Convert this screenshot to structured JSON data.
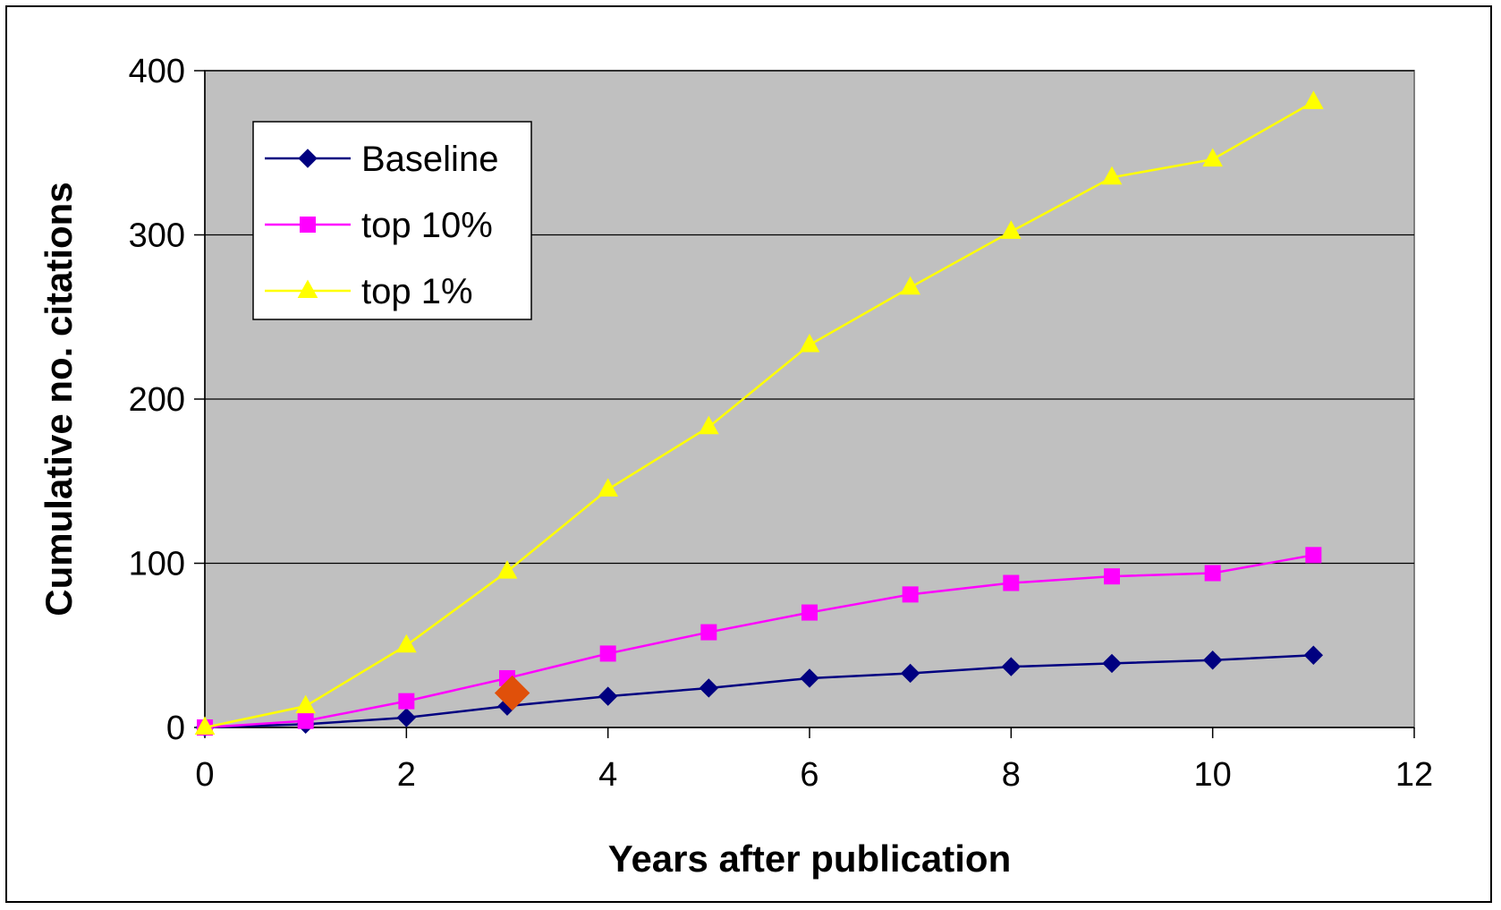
{
  "chart_data": {
    "type": "line",
    "title": "",
    "xlabel": "Years after publication",
    "ylabel": "Cumulative no. citations",
    "xlim": [
      0,
      12
    ],
    "ylim": [
      0,
      400
    ],
    "x_ticks": [
      0,
      2,
      4,
      6,
      8,
      10,
      12
    ],
    "y_ticks": [
      0,
      100,
      200,
      300,
      400
    ],
    "grid": "horizontal major gridlines",
    "plot_background": "#C0C0C0",
    "legend_position": "top-left inside plot",
    "series": [
      {
        "name": "Baseline",
        "color": "#000080",
        "marker": "diamond",
        "x": [
          0,
          1,
          2,
          3,
          4,
          5,
          6,
          7,
          8,
          9,
          10,
          11
        ],
        "values": [
          0,
          2,
          6,
          13,
          19,
          24,
          30,
          33,
          37,
          39,
          41,
          44
        ]
      },
      {
        "name": "top 10%",
        "color": "#FF00FF",
        "marker": "square",
        "x": [
          0,
          1,
          2,
          3,
          4,
          5,
          6,
          7,
          8,
          9,
          10,
          11
        ],
        "values": [
          0,
          4,
          16,
          30,
          45,
          58,
          70,
          81,
          88,
          92,
          94,
          105
        ]
      },
      {
        "name": "top 1%",
        "color": "#FFFF00",
        "marker": "triangle",
        "x": [
          0,
          1,
          2,
          3,
          4,
          5,
          6,
          7,
          8,
          9,
          10,
          11
        ],
        "values": [
          0,
          13,
          50,
          95,
          145,
          183,
          233,
          268,
          302,
          335,
          346,
          381
        ]
      }
    ],
    "highlight_point": {
      "x": 3.05,
      "y": 21,
      "color": "#E0500A",
      "marker": "diamond"
    }
  }
}
